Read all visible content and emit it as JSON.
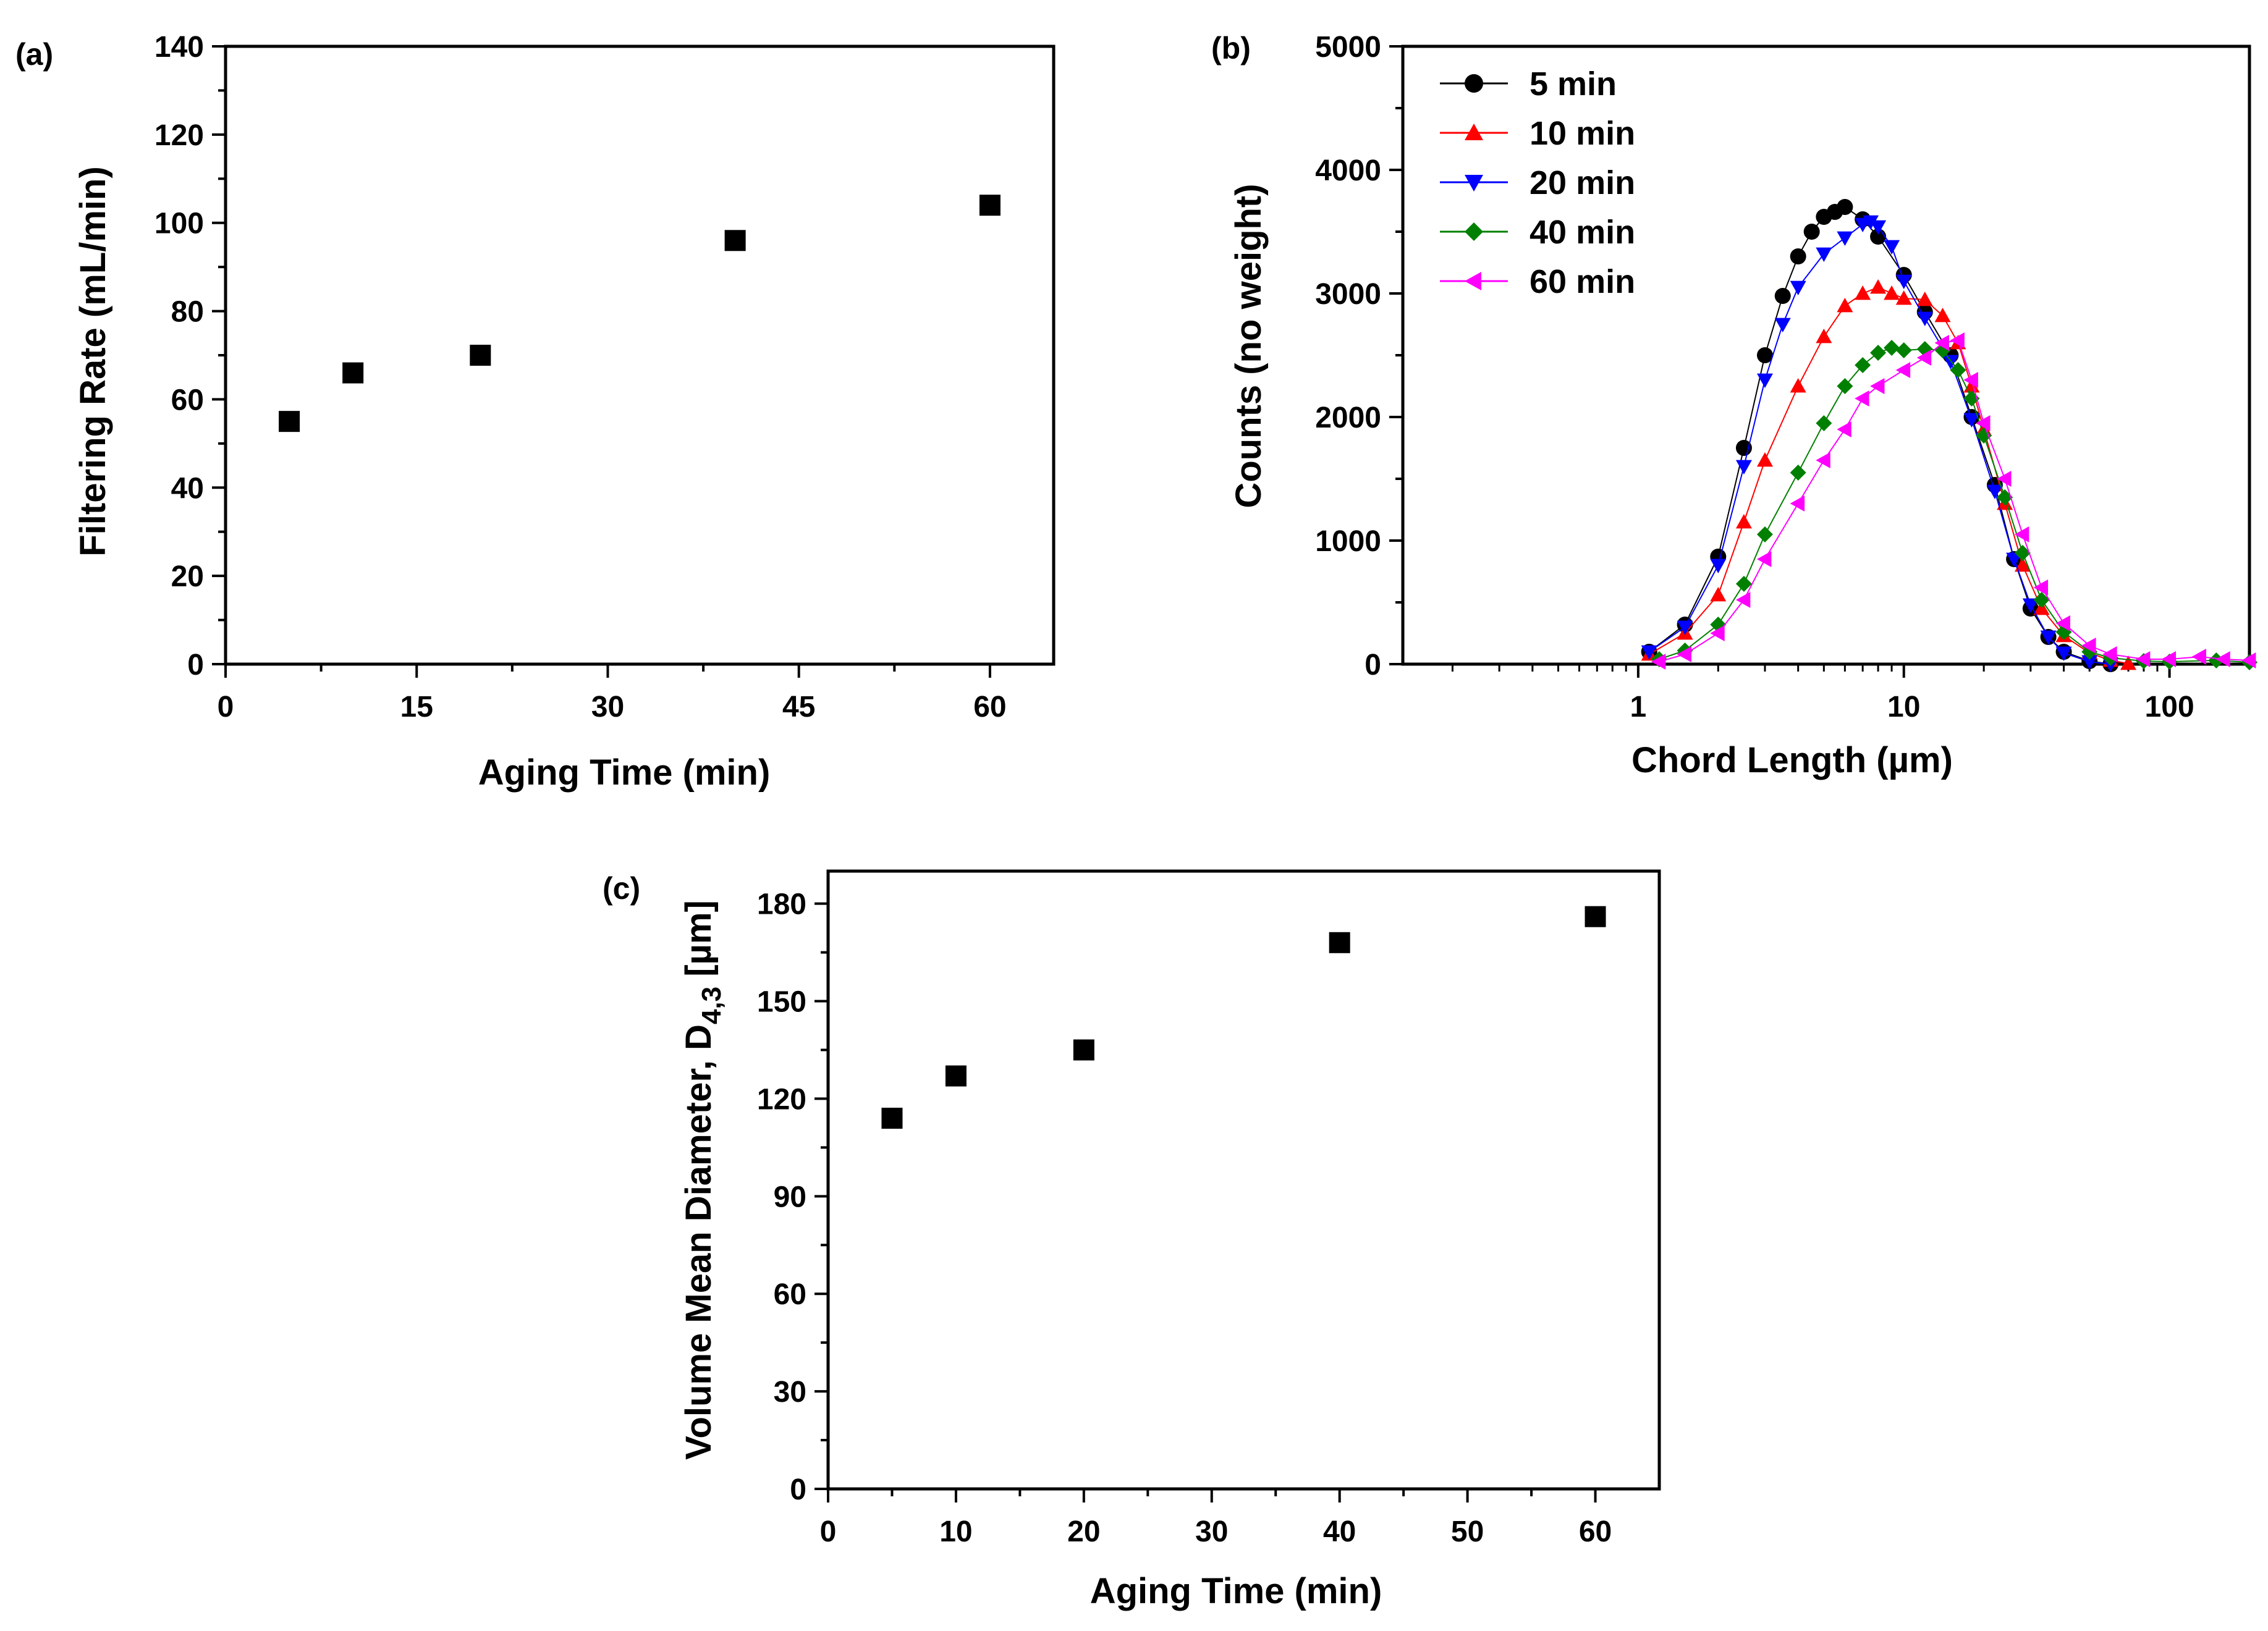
{
  "chart_data": [
    {
      "panel": "(a)",
      "type": "scatter",
      "xlabel": "Aging Time (min)",
      "ylabel": "Filtering Rate (mL/min)",
      "xlim": [
        0,
        65
      ],
      "ylim": [
        0,
        140
      ],
      "xticks": [
        "0",
        "15",
        "30",
        "45",
        "60"
      ],
      "yticks": [
        "0",
        "20",
        "40",
        "60",
        "80",
        "100",
        "120",
        "140"
      ],
      "marker": "square",
      "color": "#000000",
      "x": [
        5,
        10,
        20,
        40,
        60
      ],
      "y": [
        55,
        66,
        70,
        96,
        104
      ]
    },
    {
      "panel": "(b)",
      "type": "line",
      "xscale": "log",
      "xlabel": "Chord Length (µm)",
      "ylabel": "Counts (no weight)",
      "xlim": [
        0.13,
        200
      ],
      "ylim": [
        0,
        5000
      ],
      "xticks": [
        "1",
        "10",
        "100"
      ],
      "yticks": [
        "0",
        "1000",
        "2000",
        "3000",
        "4000",
        "5000"
      ],
      "legend_position": "top-left",
      "series": [
        {
          "name": "5 min",
          "color": "#000000",
          "marker": "circle",
          "x": [
            1.1,
            1.5,
            2,
            2.5,
            3,
            3.5,
            4,
            4.5,
            5,
            5.5,
            6,
            7,
            8,
            10,
            12,
            15,
            18,
            22,
            26,
            30,
            35,
            40,
            50,
            60
          ],
          "y": [
            100,
            320,
            870,
            1750,
            2500,
            2980,
            3300,
            3500,
            3620,
            3660,
            3700,
            3600,
            3460,
            3150,
            2850,
            2500,
            2000,
            1450,
            850,
            450,
            220,
            100,
            25,
            0
          ]
        },
        {
          "name": "10 min",
          "color": "#ff0000",
          "marker": "triangle-up",
          "x": [
            1.1,
            1.5,
            2,
            2.5,
            3,
            4,
            5,
            6,
            7,
            8,
            9,
            10,
            12,
            14,
            16,
            18,
            20,
            24,
            28,
            33,
            40,
            50,
            60,
            70
          ],
          "y": [
            80,
            250,
            560,
            1150,
            1650,
            2250,
            2650,
            2900,
            3000,
            3050,
            3000,
            2960,
            2950,
            2820,
            2600,
            2250,
            1900,
            1300,
            800,
            450,
            230,
            90,
            30,
            5
          ]
        },
        {
          "name": "20 min",
          "color": "#0000ff",
          "marker": "triangle-down",
          "x": [
            1.1,
            1.5,
            2,
            2.5,
            3,
            3.5,
            4,
            5,
            6,
            7,
            7.5,
            8,
            9,
            10,
            12,
            15,
            18,
            22,
            26,
            30,
            35,
            40,
            50,
            60
          ],
          "y": [
            100,
            300,
            800,
            1600,
            2300,
            2750,
            3050,
            3320,
            3450,
            3560,
            3580,
            3540,
            3380,
            3100,
            2800,
            2450,
            1980,
            1400,
            850,
            480,
            220,
            90,
            20,
            0
          ]
        },
        {
          "name": "40 min",
          "color": "#008000",
          "marker": "diamond",
          "x": [
            1.2,
            1.5,
            2,
            2.5,
            3,
            4,
            5,
            6,
            7,
            8,
            9,
            10,
            12,
            14,
            16,
            18,
            20,
            24,
            28,
            33,
            40,
            50,
            60,
            80,
            100,
            150,
            200
          ],
          "y": [
            40,
            110,
            320,
            650,
            1050,
            1550,
            1950,
            2250,
            2420,
            2520,
            2560,
            2540,
            2550,
            2540,
            2380,
            2150,
            1850,
            1350,
            900,
            520,
            260,
            100,
            50,
            25,
            20,
            30,
            15
          ]
        },
        {
          "name": "60 min",
          "color": "#ff00ff",
          "marker": "triangle-left",
          "x": [
            1.2,
            1.5,
            2,
            2.5,
            3,
            4,
            5,
            6,
            7,
            8,
            10,
            12,
            14,
            16,
            18,
            20,
            24,
            28,
            33,
            40,
            50,
            60,
            80,
            100,
            130,
            160,
            200
          ],
          "y": [
            20,
            80,
            250,
            520,
            850,
            1300,
            1650,
            1900,
            2150,
            2250,
            2380,
            2480,
            2600,
            2620,
            2300,
            1950,
            1500,
            1050,
            620,
            330,
            150,
            80,
            40,
            40,
            60,
            40,
            30
          ]
        }
      ]
    },
    {
      "panel": "(c)",
      "type": "scatter",
      "xlabel": "Aging Time (min)",
      "ylabel_main": "Volume Mean Diameter, D",
      "ylabel_sub": "4,3",
      "ylabel_unit": " [µm]",
      "xlim": [
        0,
        65
      ],
      "ylim": [
        0,
        190
      ],
      "xticks": [
        "0",
        "10",
        "20",
        "30",
        "40",
        "50",
        "60"
      ],
      "yticks": [
        "0",
        "30",
        "60",
        "90",
        "120",
        "150",
        "180"
      ],
      "marker": "square",
      "color": "#000000",
      "x": [
        5,
        10,
        20,
        40,
        60
      ],
      "y": [
        114,
        127,
        135,
        168,
        176
      ]
    }
  ]
}
